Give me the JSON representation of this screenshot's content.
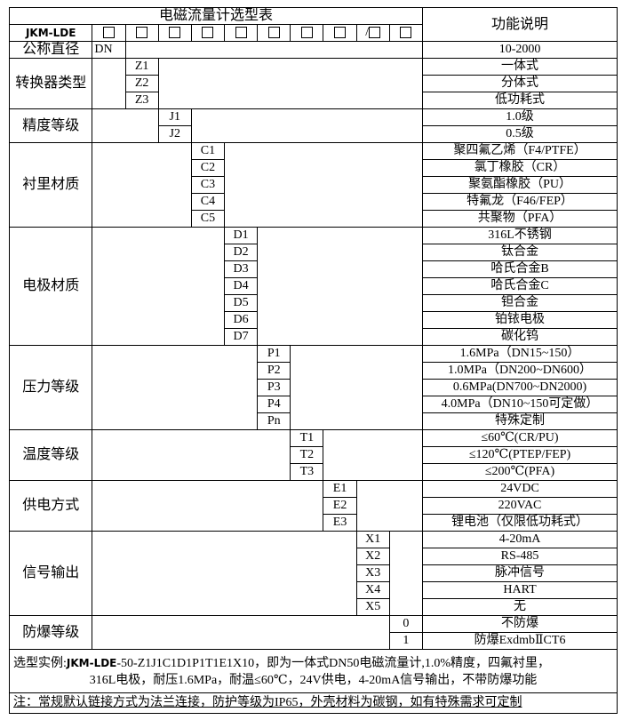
{
  "header": {
    "title": "电磁流量计选型表",
    "function_header": "功能说明",
    "model_prefix": "JKM-LDE",
    "slash": "/"
  },
  "diameter": {
    "label": "公称直径",
    "code": "DN",
    "desc": "10-2000"
  },
  "groups": [
    {
      "label": "转换器类型",
      "col": 2,
      "items": [
        {
          "code": "Z1",
          "desc": "一体式"
        },
        {
          "code": "Z2",
          "desc": "分体式"
        },
        {
          "code": "Z3",
          "desc": "低功耗式"
        }
      ]
    },
    {
      "label": "精度等级",
      "col": 3,
      "items": [
        {
          "code": "J1",
          "desc": "1.0级"
        },
        {
          "code": "J2",
          "desc": "0.5级"
        }
      ]
    },
    {
      "label": "衬里材质",
      "col": 4,
      "items": [
        {
          "code": "C1",
          "desc": "聚四氟乙烯（F4/PTFE）"
        },
        {
          "code": "C2",
          "desc": "氯丁橡胶（CR）"
        },
        {
          "code": "C3",
          "desc": "聚氨酯橡胶（PU）"
        },
        {
          "code": "C4",
          "desc": "特氟龙（F46/FEP）"
        },
        {
          "code": "C5",
          "desc": "共聚物（PFA）"
        }
      ]
    },
    {
      "label": "电极材质",
      "col": 5,
      "items": [
        {
          "code": "D1",
          "desc": "316L不锈钢"
        },
        {
          "code": "D2",
          "desc": "钛合金"
        },
        {
          "code": "D3",
          "desc": "哈氏合金B"
        },
        {
          "code": "D4",
          "desc": "哈氏合金C"
        },
        {
          "code": "D5",
          "desc": "钽合金"
        },
        {
          "code": "D6",
          "desc": "铂铱电极"
        },
        {
          "code": "D7",
          "desc": "碳化钨"
        }
      ]
    },
    {
      "label": "压力等级",
      "col": 6,
      "items": [
        {
          "code": "P1",
          "desc": "1.6MPa（DN15~150）"
        },
        {
          "code": "P2",
          "desc": "1.0MPa（DN200~DN600）"
        },
        {
          "code": "P3",
          "desc": "0.6MPa(DN700~DN2000)"
        },
        {
          "code": "P4",
          "desc": "4.0MPa（DN10~150可定做）"
        },
        {
          "code": "Pn",
          "desc": "特殊定制"
        }
      ]
    },
    {
      "label": "温度等级",
      "col": 7,
      "items": [
        {
          "code": "T1",
          "desc": "≤60℃(CR/PU)"
        },
        {
          "code": "T2",
          "desc": "≤120℃(PTEP/FEP)"
        },
        {
          "code": "T3",
          "desc": "≤200℃(PFA)"
        }
      ]
    },
    {
      "label": "供电方式",
      "col": 8,
      "items": [
        {
          "code": "E1",
          "desc": "24VDC"
        },
        {
          "code": "E2",
          "desc": "220VAC"
        },
        {
          "code": "E3",
          "desc": "锂电池（仅限低功耗式）"
        }
      ]
    },
    {
      "label": "信号输出",
      "col": 9,
      "items": [
        {
          "code": "X1",
          "desc": "4-20mA"
        },
        {
          "code": "X2",
          "desc": "RS-485"
        },
        {
          "code": "X3",
          "desc": "脉冲信号"
        },
        {
          "code": "X4",
          "desc": "HART"
        },
        {
          "code": "X5",
          "desc": "无"
        }
      ]
    },
    {
      "label": "防爆等级",
      "col": 10,
      "items": [
        {
          "code": "0",
          "desc": "不防爆"
        },
        {
          "code": "1",
          "desc": "防爆ExdmbⅡCT6"
        }
      ]
    }
  ],
  "footer": {
    "example_label": "选型实例:",
    "example_prefix": "JKM-LDE",
    "example_rest": "-50-Z1J1C1D1P1T1E1X10，即为一体式DN50电磁流量计,1.0%精度，四氟衬里，",
    "example_line2": "316L电极，耐压1.6MPa，耐温≤60℃，24V供电，4-20mA信号输出，不带防爆功能",
    "note": "注：常规默认链接方式为法兰连接，防护等级为IP65，外壳材料为碳钢，如有特殊需求可定制"
  }
}
